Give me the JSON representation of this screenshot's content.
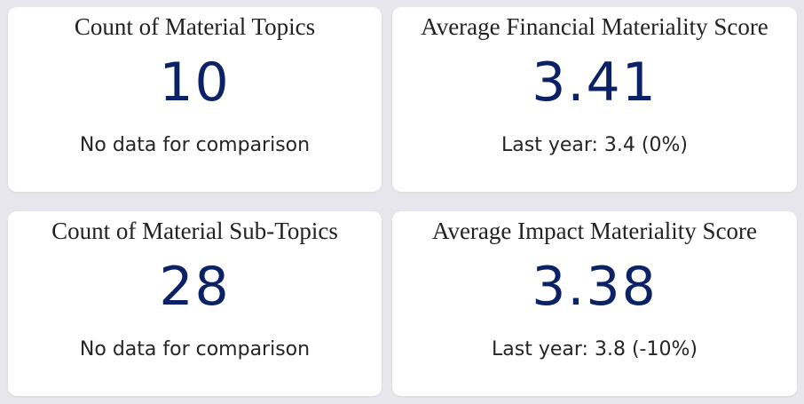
{
  "cards": [
    {
      "title": "Count of Material Topics",
      "value": "10",
      "subtitle": "No data for comparison"
    },
    {
      "title": "Average Financial Materiality Score",
      "value": "3.41",
      "subtitle": "Last year: 3.4 (0%)"
    },
    {
      "title": "Count of Material Sub-Topics",
      "value": "28",
      "subtitle": "No data for comparison"
    },
    {
      "title": "Average Impact Materiality Score",
      "value": "3.38",
      "subtitle": "Last year: 3.8 (-10%)"
    }
  ],
  "colors": {
    "background": "#e6e6ec",
    "card": "#ffffff",
    "value_text": "#0b2267",
    "title_text": "#222222"
  }
}
